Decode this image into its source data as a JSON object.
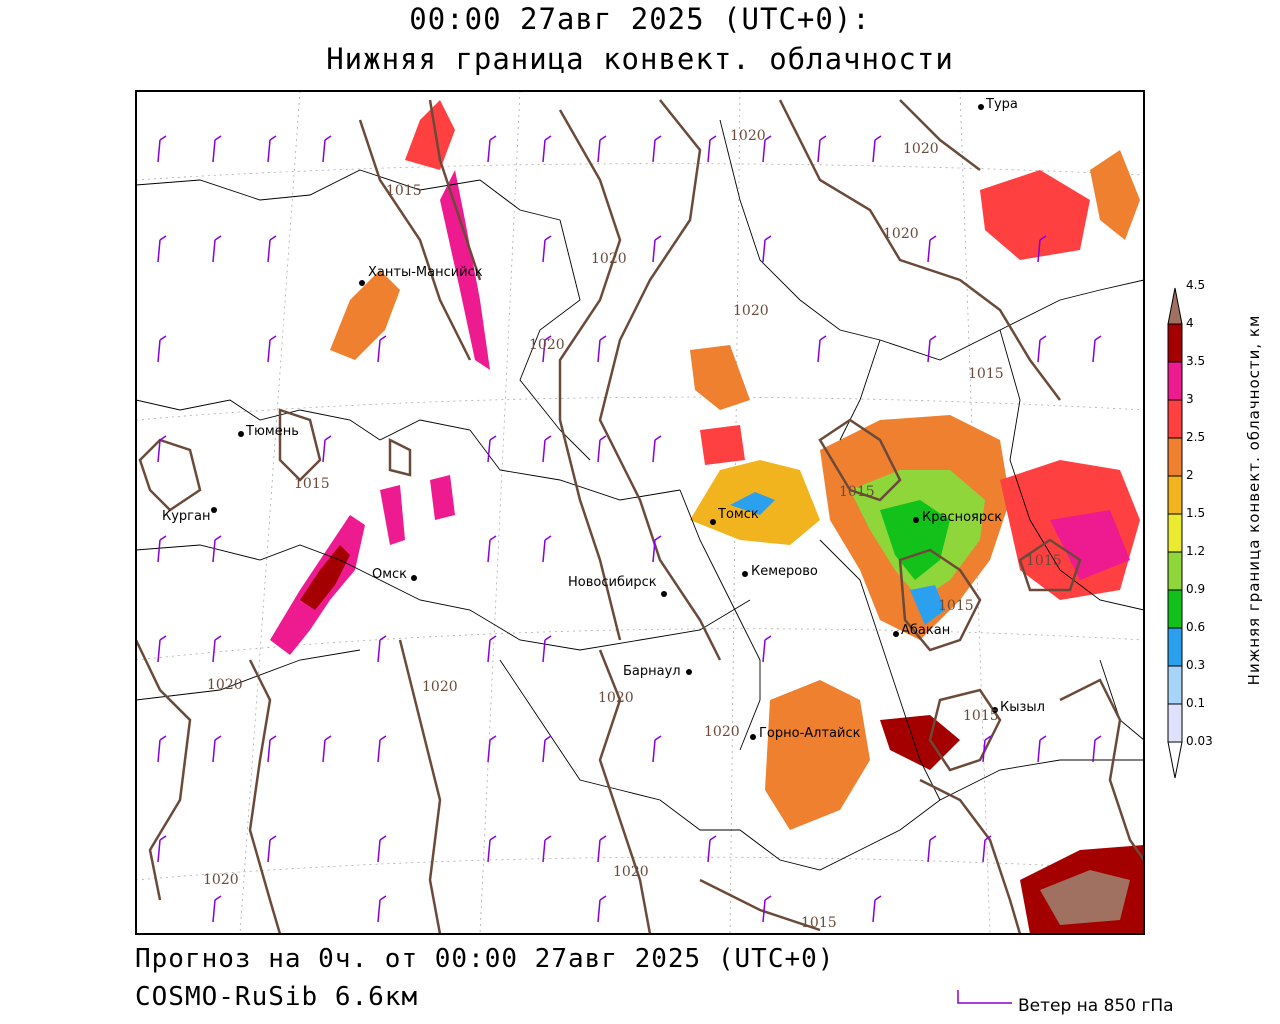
{
  "header": {
    "line1": "00:00 27авг 2025 (UTC+0):",
    "line2": "Нижняя граница конвект. облачности"
  },
  "footer": {
    "forecast": "Прогноз на 0ч. от 00:00 27авг 2025 (UTC+0)",
    "model": "COSMO-RuSib 6.6км",
    "wind_legend": "Ветер на 850 гПа"
  },
  "colorbar": {
    "title": "Нижняя граница конвект. облачности, км",
    "ticks": [
      "0.03",
      "0.1",
      "0.3",
      "0.6",
      "0.9",
      "1.2",
      "1.5",
      "2",
      "2.5",
      "3",
      "3.5",
      "4",
      "4.5"
    ],
    "colors": [
      "#ffffff",
      "#e0e0ff",
      "#a8d4f8",
      "#2aa0ee",
      "#12c21a",
      "#8fd63a",
      "#eaea30",
      "#f2b41e",
      "#ee8030",
      "#ff4040",
      "#ee1a90",
      "#a40000",
      "#a07060"
    ]
  },
  "cities": [
    {
      "name": "Тура"
    },
    {
      "name": "Ханты-Мансийск"
    },
    {
      "name": "Тюмень"
    },
    {
      "name": "Курган"
    },
    {
      "name": "Омск"
    },
    {
      "name": "Томск"
    },
    {
      "name": "Красноярск"
    },
    {
      "name": "Кемерово"
    },
    {
      "name": "Новосибирск"
    },
    {
      "name": "Абакан"
    },
    {
      "name": "Барнаул"
    },
    {
      "name": "Кызыл"
    },
    {
      "name": "Горно-Алтайск"
    }
  ],
  "isobar_labels": [
    "1020",
    "1015",
    "1020",
    "1020",
    "1020",
    "1020",
    "1020",
    "1015",
    "1015",
    "1015",
    "1015",
    "1015",
    "1020",
    "1020",
    "1020",
    "1020",
    "1015",
    "1020",
    "1020",
    "1015"
  ],
  "colors": {
    "isobar": "#6b4a3a",
    "wind_barb": "#8800dd",
    "border": "#000000"
  }
}
